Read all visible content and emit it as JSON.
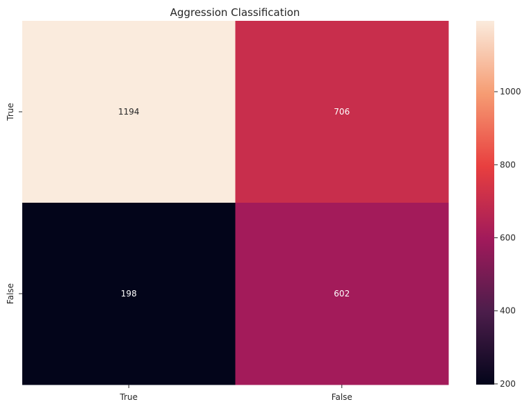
{
  "chart_data": {
    "type": "heatmap",
    "title": "Aggression Classification",
    "xlabel": "",
    "ylabel": "",
    "x_categories": [
      "True",
      "False"
    ],
    "y_categories": [
      "True",
      "False"
    ],
    "values": [
      [
        1194,
        706
      ],
      [
        198,
        602
      ]
    ],
    "colorbar": {
      "min": 198,
      "max": 1194,
      "ticks": [
        200,
        400,
        600,
        800,
        1000
      ],
      "colormap": "rocket",
      "stops": [
        "#03051a",
        "#4c1d4b",
        "#a11a5b",
        "#e83f3f",
        "#f69c73",
        "#faebdd"
      ]
    },
    "grid": false,
    "legend": "colorbar-right"
  }
}
